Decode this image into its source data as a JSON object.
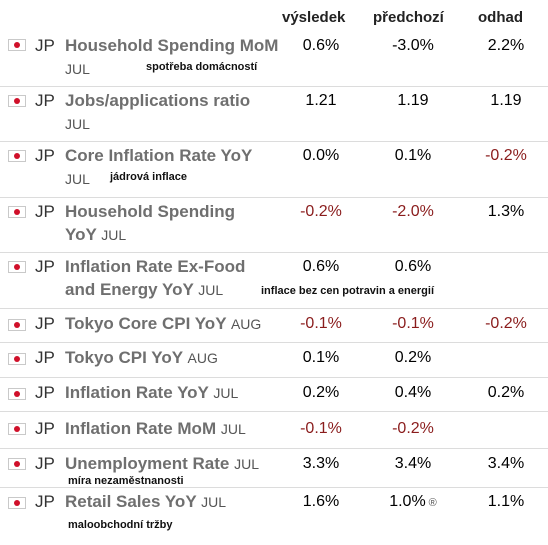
{
  "header": {
    "actual": "výsledek",
    "previous": "předchozí",
    "forecast": "odhad"
  },
  "rows": [
    {
      "country": "JP",
      "name": "Household Spending MoM",
      "period": "JUL",
      "actual": "0.6%",
      "previous": "-3.0%",
      "forecast": "2.2%",
      "note": "spotřeba domácností"
    },
    {
      "country": "JP",
      "name": "Jobs/applications ratio",
      "period": "JUL",
      "actual": "1.21",
      "previous": "1.19",
      "forecast": "1.19",
      "note": ""
    },
    {
      "country": "JP",
      "name": "Core Inflation Rate YoY",
      "period": "JUL",
      "actual": "0.0%",
      "previous": "0.1%",
      "forecast": "-0.2%",
      "note": "jádrová inflace"
    },
    {
      "country": "JP",
      "name": "Household Spending YoY",
      "period": "JUL",
      "actual": "-0.2%",
      "previous": "-2.0%",
      "forecast": "1.3%",
      "note": ""
    },
    {
      "country": "JP",
      "name": "Inflation Rate Ex-Food and Energy YoY",
      "period": "JUL",
      "actual": "0.6%",
      "previous": "0.6%",
      "forecast": "",
      "note": "inflace bez cen potravin a energií"
    },
    {
      "country": "JP",
      "name": "Tokyo Core CPI YoY",
      "period": "AUG",
      "actual": "-0.1%",
      "previous": "-0.1%",
      "forecast": "-0.2%",
      "note": ""
    },
    {
      "country": "JP",
      "name": "Tokyo CPI YoY",
      "period": "AUG",
      "actual": "0.1%",
      "previous": "0.2%",
      "forecast": "",
      "note": ""
    },
    {
      "country": "JP",
      "name": "Inflation Rate YoY",
      "period": "JUL",
      "actual": "0.2%",
      "previous": "0.4%",
      "forecast": "0.2%",
      "note": ""
    },
    {
      "country": "JP",
      "name": "Inflation Rate MoM",
      "period": "JUL",
      "actual": "-0.1%",
      "previous": "-0.2%",
      "forecast": "",
      "note": ""
    },
    {
      "country": "JP",
      "name": "Unemployment Rate",
      "period": "JUL",
      "actual": "3.3%",
      "previous": "3.4%",
      "forecast": "3.4%",
      "note": "míra nezaměstnanosti"
    },
    {
      "country": "JP",
      "name": "Retail Sales YoY",
      "period": "JUL",
      "actual": "1.6%",
      "previous": "1.0%",
      "forecast": "1.1%",
      "note": "maloobchodní tržby",
      "revised_mark": "®"
    }
  ],
  "colors": {
    "positive": "#2f7a2f",
    "negative": "#8a1c1c",
    "name": "#6f6f6f",
    "flag_red": "#d0102a"
  }
}
